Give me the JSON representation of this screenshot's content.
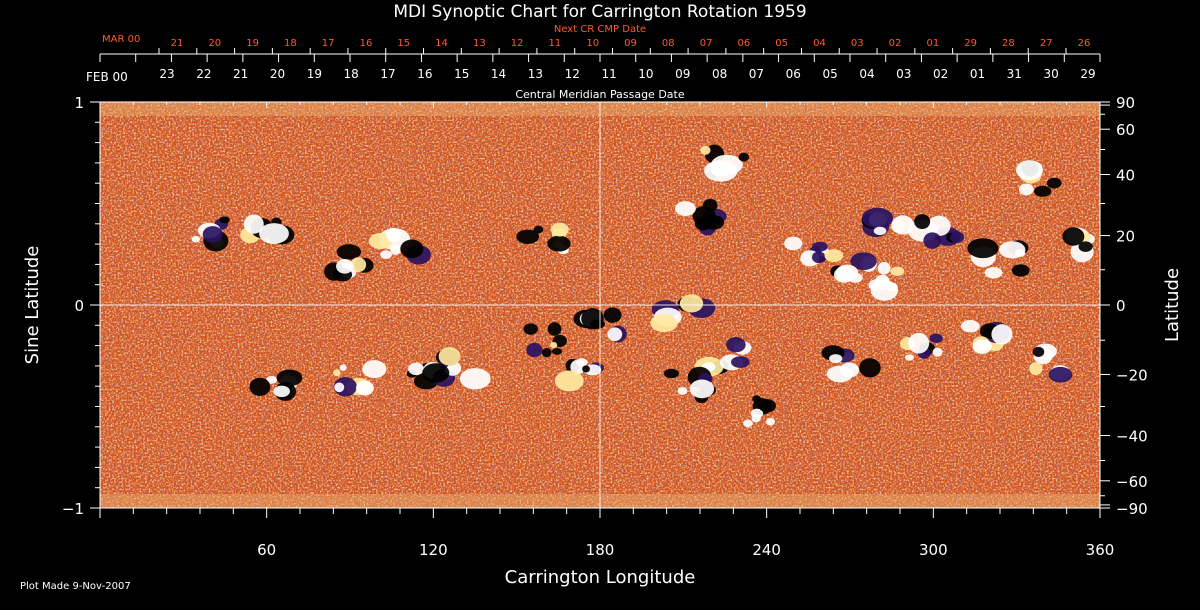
{
  "chart_data": {
    "type": "heatmap",
    "title": "MDI Synoptic Chart for Carrington Rotation 1959",
    "xlabel": "Carrington Longitude",
    "ylabel_left": "Sine Latitude",
    "ylabel_right": "Latitude",
    "xlim": [
      0,
      360
    ],
    "ylim": [
      -1,
      1
    ],
    "x_ticks": [
      60,
      120,
      180,
      240,
      300,
      360
    ],
    "y_left_ticks": [
      -1,
      0,
      1
    ],
    "y_right_ticks": [
      90,
      60,
      40,
      20,
      0,
      -20,
      -40,
      -60,
      -90
    ],
    "grid": "crosshair at 180 longitude and 0 latitude",
    "top_axis_cmp": {
      "label": "Central Meridian Passage Date",
      "month_label": "FEB 00",
      "days": [
        "23",
        "22",
        "21",
        "20",
        "19",
        "18",
        "17",
        "16",
        "15",
        "14",
        "13",
        "12",
        "11",
        "10",
        "09",
        "08",
        "07",
        "06",
        "05",
        "04",
        "03",
        "02",
        "01",
        "31",
        "30",
        "29"
      ]
    },
    "top_axis_next_cmp": {
      "label": "Next CR CMP Date",
      "month_label": "MAR 00",
      "days": [
        "21",
        "20",
        "19",
        "18",
        "17",
        "16",
        "15",
        "14",
        "13",
        "12",
        "11",
        "10",
        "09",
        "08",
        "07",
        "06",
        "05",
        "04",
        "03",
        "02",
        "01",
        "29",
        "28",
        "27",
        "26"
      ]
    },
    "palette": {
      "background": "#d85a12",
      "light": "#ffd27a",
      "dark": "#2a1260",
      "white": "#ffffff",
      "black": "#000000"
    },
    "footer": "Plot Made  9-Nov-2007"
  }
}
